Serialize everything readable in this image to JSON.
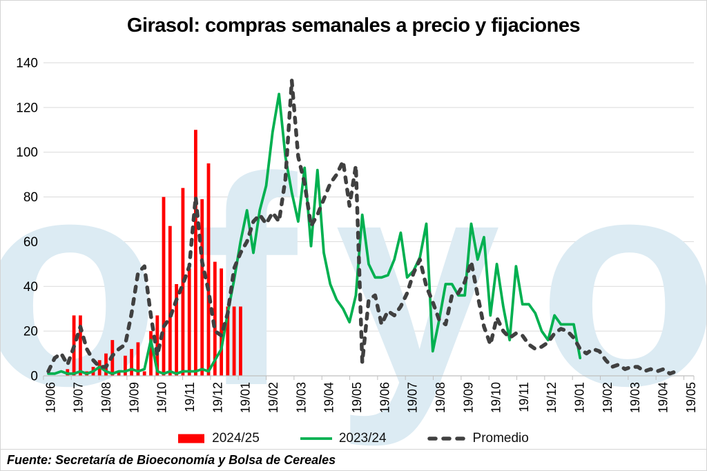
{
  "title": "Girasol: compras semanales a precio y fijaciones",
  "source": "Fuente: Secretaría de Bioeconomía y Bolsa de Cereales",
  "watermark": "ofyo",
  "chart_data": {
    "type": "combo",
    "title": "Girasol: compras semanales a precio y fijaciones",
    "xlabel": "",
    "ylabel": "",
    "ylim": [
      0,
      140
    ],
    "yticks": [
      0,
      20,
      40,
      60,
      80,
      100,
      120,
      140
    ],
    "grid": "horizontal",
    "legend_position": "bottom",
    "x_unit": "week",
    "x_tick_labels": [
      "19/06",
      "19/07",
      "19/08",
      "19/09",
      "19/10",
      "19/11",
      "19/12",
      "19/01",
      "19/02",
      "19/03",
      "19/04",
      "19/05",
      "19/06",
      "19/07",
      "19/08",
      "19/09",
      "19/10",
      "19/11",
      "19/12",
      "19/01",
      "19/02",
      "19/03",
      "19/04",
      "19/05"
    ],
    "colors": {
      "grid": "#D9D9D9",
      "axis": "#BFBFBF",
      "watermark": "#DCEBF3",
      "text": "#000000"
    },
    "series": [
      {
        "name": "2024/25",
        "kind": "bar",
        "color": "#FF0000",
        "start_week": 3,
        "values": [
          3,
          27,
          27,
          2,
          4,
          7,
          10,
          16,
          2,
          9,
          12,
          15,
          2,
          20,
          27,
          80,
          67,
          41,
          84,
          48,
          110,
          79,
          95,
          51,
          48,
          31,
          31,
          31
        ]
      },
      {
        "name": "2023/24",
        "kind": "line",
        "color": "#00B050",
        "start_week": 0,
        "values": [
          1,
          1,
          2,
          1,
          1,
          2,
          1,
          2,
          4,
          2,
          1,
          2,
          2,
          3,
          2,
          3,
          16,
          2,
          1,
          2,
          1,
          2,
          2,
          2,
          3,
          2,
          7,
          12,
          28,
          43,
          60,
          74,
          55,
          74,
          85,
          109,
          126,
          98,
          82,
          69,
          93,
          58,
          92,
          55,
          41,
          34,
          30,
          24,
          36,
          72,
          50,
          44,
          44,
          45,
          52,
          64,
          44,
          47,
          53,
          68,
          11,
          25,
          41,
          41,
          36,
          36,
          68,
          52,
          62,
          27,
          50,
          31,
          16,
          49,
          32,
          32,
          28,
          20,
          16,
          27,
          23,
          23,
          23,
          8
        ]
      },
      {
        "name": "Promedio",
        "kind": "dashed-line",
        "color": "#404040",
        "start_week": 0,
        "values": [
          2,
          8,
          10,
          5,
          13,
          22,
          12,
          7,
          4,
          4,
          9,
          12,
          14,
          28,
          46,
          49,
          27,
          9,
          22,
          26,
          34,
          41,
          49,
          80,
          51,
          38,
          20,
          18,
          28,
          48,
          55,
          60,
          69,
          72,
          68,
          73,
          69,
          88,
          132,
          98,
          86,
          67,
          72,
          79,
          86,
          90,
          96,
          76,
          94,
          6,
          34,
          36,
          23,
          29,
          27,
          31,
          37,
          46,
          52,
          40,
          33,
          25,
          23,
          36,
          37,
          42,
          51,
          36,
          22,
          14,
          26,
          20,
          17,
          19,
          18,
          14,
          12,
          13,
          15,
          19,
          21,
          20,
          17,
          12,
          10,
          12,
          11,
          7,
          4,
          5,
          3,
          4,
          4,
          2,
          3,
          2,
          3,
          1,
          2
        ]
      }
    ]
  }
}
